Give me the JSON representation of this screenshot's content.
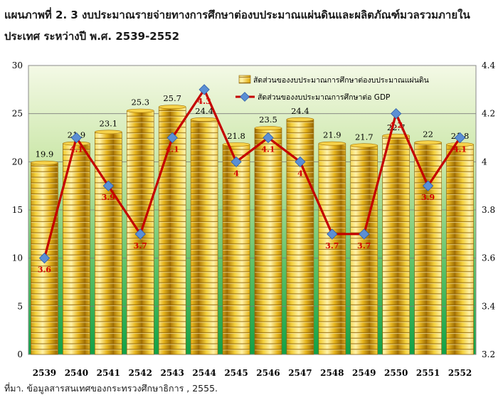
{
  "title": "แผนภาพที่ 2. 3 งบประมาณรายจ่ายทางการศึกษาต่องบประมาณแผ่นดินและผลิตภัณฑ์มวลรวมภายในประเทศ ระหว่างปี พ.ศ. 2539-2552",
  "source": "ที่มา. ข้อมูลสารสนเทศของกระทรวงศึกษาธิการ , 2555.",
  "colors": {
    "plot_bg_top": "#f2f8e4",
    "plot_bg_bottom": "#1aa64a",
    "coin_gold": "#e8b820",
    "coin_edge": "#b07c08",
    "line_red": "#cc0000",
    "marker_blue": "#5b8fd4"
  },
  "chart_data": {
    "type": "bar",
    "categories": [
      "2539",
      "2540",
      "2541",
      "2542",
      "2543",
      "2544",
      "2545",
      "2546",
      "2547",
      "2548",
      "2549",
      "2550",
      "2551",
      "2552"
    ],
    "series": [
      {
        "name": "สัดส่วนของงบประมาณการศึกษาต่องบประมาณแผ่นดิน",
        "type": "bar",
        "axis": "left",
        "values": [
          19.9,
          21.9,
          23.1,
          25.3,
          25.7,
          24.4,
          21.8,
          23.5,
          24.4,
          21.9,
          21.7,
          22.7,
          22,
          21.8
        ],
        "labels": [
          "19.9",
          "21.9",
          "23.1",
          "25.3",
          "25.7",
          "24.4",
          "21.8",
          "23.5",
          "24.4",
          "21.9",
          "21.7",
          "22.7",
          "22",
          "21.8"
        ]
      },
      {
        "name": "สัดส่วนของงบประมาณการศึกษาต่อ GDP",
        "type": "line",
        "axis": "right",
        "values": [
          3.6,
          4.1,
          3.9,
          3.7,
          4.1,
          4.3,
          4,
          4.1,
          4,
          3.7,
          3.7,
          4.2,
          3.9,
          4.1
        ],
        "labels": [
          "3.6",
          "4.1",
          "3.9",
          "3.7",
          "4.1",
          "4.3",
          "4",
          "4.1",
          "4",
          "3.7",
          "3.7",
          "4.2",
          "3.9",
          "4.1"
        ]
      }
    ],
    "ylim_left": [
      0,
      30
    ],
    "yticks_left": [
      "0",
      "5",
      "10",
      "15",
      "20",
      "25",
      "30"
    ],
    "ylim_right": [
      3.2,
      4.4
    ],
    "yticks_right": [
      "3.2",
      "3.4",
      "3.6",
      "3.8",
      "4",
      "4.2",
      "4.4"
    ],
    "grid": true,
    "legend_position": "top-right"
  }
}
